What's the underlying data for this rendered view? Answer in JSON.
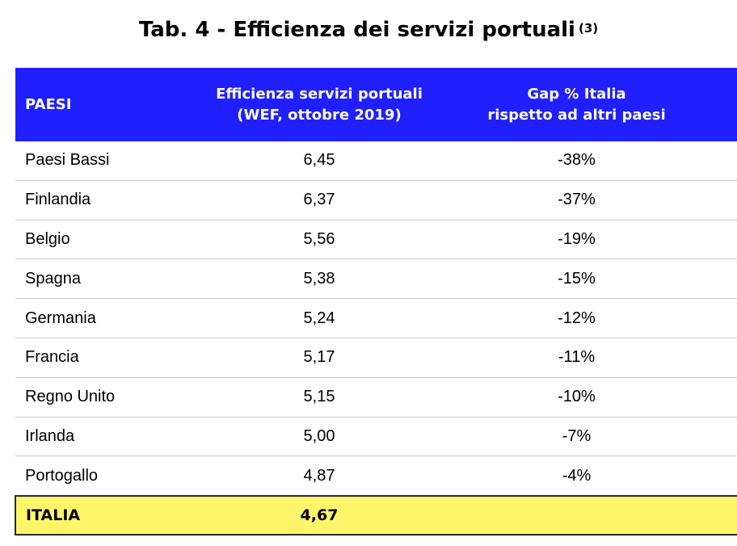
{
  "title": {
    "text": "Tab. 4 - Efficienza dei servizi portuali",
    "note_ref": "(3)"
  },
  "table": {
    "headers": {
      "country": "PAESI",
      "efficiency_line1": "Efficienza servizi portuali",
      "efficiency_line2": "(WEF, ottobre 2019)",
      "gap_line1": "Gap % Italia",
      "gap_line2": "rispetto ad altri paesi"
    },
    "rows": [
      {
        "country": "Paesi Bassi",
        "efficiency": "6,45",
        "gap": "-38%"
      },
      {
        "country": "Finlandia",
        "efficiency": "6,37",
        "gap": "-37%"
      },
      {
        "country": "Belgio",
        "efficiency": "5,56",
        "gap": "-19%"
      },
      {
        "country": "Spagna",
        "efficiency": "5,38",
        "gap": "-15%"
      },
      {
        "country": "Germania",
        "efficiency": "5,24",
        "gap": "-12%"
      },
      {
        "country": "Francia",
        "efficiency": "5,17",
        "gap": "-11%"
      },
      {
        "country": "Regno Unito",
        "efficiency": "5,15",
        "gap": "-10%"
      },
      {
        "country": "Irlanda",
        "efficiency": "5,00",
        "gap": "-7%"
      },
      {
        "country": "Portogallo",
        "efficiency": "4,87",
        "gap": "-4%"
      }
    ],
    "highlight": {
      "country": "ITALIA",
      "efficiency": "4,67",
      "gap": ""
    }
  },
  "colors": {
    "header_bg": "#1f1fff",
    "header_text": "#ffffff",
    "highlight_bg": "#fdf66a"
  }
}
